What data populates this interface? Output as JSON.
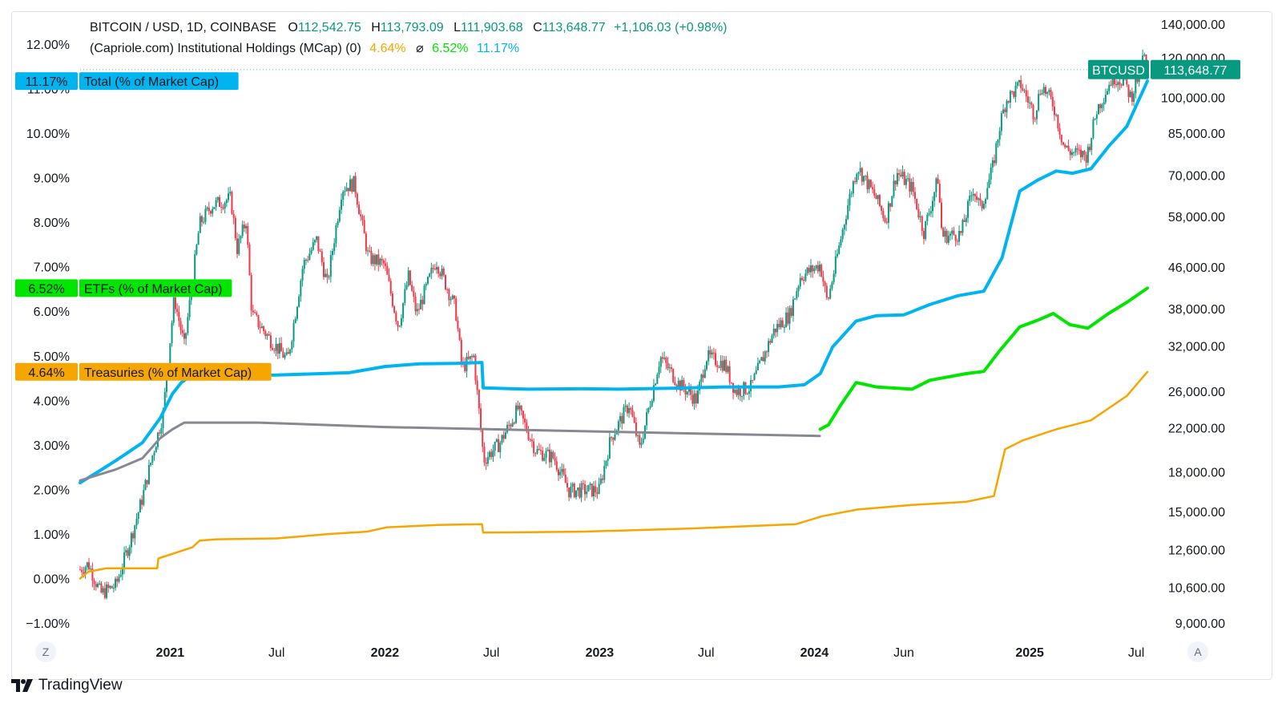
{
  "header": {
    "symbol": "BITCOIN / USD, 1D, COINBASE",
    "open_label": "O",
    "open": "112,542.75",
    "high_label": "H",
    "high": "113,793.09",
    "low_label": "L",
    "low": "111,903.68",
    "close_label": "C",
    "close": "113,648.77",
    "change": "+1,106.03 (+0.98%)",
    "indicator": "(Capriole.com) Institutional Holdings (MCap) (0)",
    "indicator_treasuries": "4.64%",
    "indicator_sep": "⌀",
    "indicator_etfs": "6.52%",
    "indicator_total": "11.17%"
  },
  "colors": {
    "up": "#089981",
    "down": "#f23645",
    "total": "#00b4f0",
    "etfs": "#00e600",
    "treasuries": "#f7a600",
    "gray": "#868993"
  },
  "price_tag": {
    "label": "BTCUSD",
    "value": "113,648.77"
  },
  "footer": {
    "left_button": "Z",
    "right_button": "A",
    "brand": "TradingView"
  },
  "chart_data": {
    "type": "line",
    "title": "BITCOIN / USD, 1D, COINBASE",
    "left_axis_ticks": [
      "12.00%",
      "11.00%",
      "10.00%",
      "9.00%",
      "8.00%",
      "7.00%",
      "6.00%",
      "5.00%",
      "4.00%",
      "3.00%",
      "2.00%",
      "1.00%",
      "0.00%",
      "−1.00%"
    ],
    "left_axis_values": [
      12,
      11,
      10,
      9,
      8,
      7,
      6,
      5,
      4,
      3,
      2,
      1,
      0,
      -1
    ],
    "ylim_left": [
      -1,
      12
    ],
    "right_axis_ticks": [
      "140,000.00",
      "120,000.00",
      "100,000.00",
      "85,000.00",
      "70,000.00",
      "58,000.00",
      "46,000.00",
      "38,000.00",
      "32,000.00",
      "26,000.00",
      "22,000.00",
      "18,000.00",
      "15,000.00",
      "12,600.00",
      "10,600.00",
      "9,000.00"
    ],
    "right_axis_values": [
      140000,
      120000,
      100000,
      85000,
      70000,
      58000,
      46000,
      38000,
      32000,
      26000,
      22000,
      18000,
      15000,
      12600,
      10600,
      9000
    ],
    "right_axis_scale": "log",
    "x_ticks": [
      "2021",
      "Jul",
      "2022",
      "Jul",
      "2023",
      "Jul",
      "2024",
      "Jun",
      "2025",
      "Jul"
    ],
    "x_tick_dates": [
      "2021-01-01",
      "2021-07-01",
      "2022-01-01",
      "2022-07-01",
      "2023-01-01",
      "2023-07-01",
      "2024-01-01",
      "2024-06-01",
      "2025-01-01",
      "2025-07-01"
    ],
    "xlim": [
      "2020-08-01",
      "2025-07-20"
    ],
    "grid": false,
    "series": [
      {
        "name": "Total (% of Market Cap)",
        "label_value": "11.17%",
        "color": "#00b4f0",
        "axis": "left",
        "points": [
          [
            "2020-08-01",
            2.15
          ],
          [
            "2020-09-01",
            2.4
          ],
          [
            "2020-10-01",
            2.65
          ],
          [
            "2020-11-15",
            3.05
          ],
          [
            "2020-12-15",
            3.6
          ],
          [
            "2021-01-05",
            4.15
          ],
          [
            "2021-01-20",
            4.4
          ],
          [
            "2021-02-10",
            4.6
          ],
          [
            "2021-04-01",
            4.56
          ],
          [
            "2021-07-01",
            4.57
          ],
          [
            "2021-11-01",
            4.62
          ],
          [
            "2022-01-01",
            4.76
          ],
          [
            "2022-03-01",
            4.82
          ],
          [
            "2022-05-01",
            4.83
          ],
          [
            "2022-06-15",
            4.85
          ],
          [
            "2022-06-17",
            4.28
          ],
          [
            "2022-09-01",
            4.25
          ],
          [
            "2022-12-01",
            4.26
          ],
          [
            "2023-02-01",
            4.25
          ],
          [
            "2023-05-01",
            4.27
          ],
          [
            "2023-08-01",
            4.3
          ],
          [
            "2023-11-01",
            4.3
          ],
          [
            "2023-12-15",
            4.35
          ],
          [
            "2024-01-11",
            4.6
          ],
          [
            "2024-02-01",
            5.2
          ],
          [
            "2024-03-12",
            5.78
          ],
          [
            "2024-04-15",
            5.9
          ],
          [
            "2024-06-01",
            5.92
          ],
          [
            "2024-07-15",
            6.15
          ],
          [
            "2024-09-01",
            6.35
          ],
          [
            "2024-10-15",
            6.45
          ],
          [
            "2024-11-15",
            7.2
          ],
          [
            "2024-12-15",
            8.7
          ],
          [
            "2025-01-15",
            8.95
          ],
          [
            "2025-02-15",
            9.15
          ],
          [
            "2025-03-15",
            9.1
          ],
          [
            "2025-04-15",
            9.2
          ],
          [
            "2025-05-15",
            9.7
          ],
          [
            "2025-06-15",
            10.15
          ],
          [
            "2025-07-20",
            11.17
          ]
        ]
      },
      {
        "name": "ETFs (% of Market Cap)",
        "label_value": "6.52%",
        "color": "#00e600",
        "axis": "left",
        "points": [
          [
            "2024-01-11",
            3.35
          ],
          [
            "2024-01-25",
            3.45
          ],
          [
            "2024-02-15",
            3.9
          ],
          [
            "2024-03-12",
            4.4
          ],
          [
            "2024-04-15",
            4.3
          ],
          [
            "2024-06-15",
            4.25
          ],
          [
            "2024-07-15",
            4.45
          ],
          [
            "2024-09-15",
            4.6
          ],
          [
            "2024-10-15",
            4.65
          ],
          [
            "2024-11-10",
            5.1
          ],
          [
            "2024-12-15",
            5.65
          ],
          [
            "2025-01-15",
            5.8
          ],
          [
            "2025-02-10",
            5.95
          ],
          [
            "2025-03-10",
            5.7
          ],
          [
            "2025-04-10",
            5.62
          ],
          [
            "2025-05-15",
            5.95
          ],
          [
            "2025-06-15",
            6.2
          ],
          [
            "2025-07-20",
            6.52
          ]
        ]
      },
      {
        "name": "Treasuries (% of Market Cap)",
        "label_value": "4.64%",
        "color": "#f7a600",
        "axis": "left",
        "points": [
          [
            "2020-08-01",
            0.0
          ],
          [
            "2020-08-15",
            0.15
          ],
          [
            "2020-09-15",
            0.23
          ],
          [
            "2020-12-10",
            0.23
          ],
          [
            "2020-12-12",
            0.45
          ],
          [
            "2021-02-08",
            0.7
          ],
          [
            "2021-02-20",
            0.85
          ],
          [
            "2021-03-20",
            0.88
          ],
          [
            "2021-07-01",
            0.9
          ],
          [
            "2021-10-01",
            1.0
          ],
          [
            "2021-12-01",
            1.05
          ],
          [
            "2022-01-05",
            1.15
          ],
          [
            "2022-04-01",
            1.2
          ],
          [
            "2022-06-15",
            1.22
          ],
          [
            "2022-06-17",
            1.03
          ],
          [
            "2022-12-01",
            1.05
          ],
          [
            "2023-06-01",
            1.12
          ],
          [
            "2023-12-01",
            1.22
          ],
          [
            "2024-01-15",
            1.4
          ],
          [
            "2024-03-15",
            1.55
          ],
          [
            "2024-06-15",
            1.65
          ],
          [
            "2024-09-15",
            1.72
          ],
          [
            "2024-11-01",
            1.85
          ],
          [
            "2024-11-20",
            2.9
          ],
          [
            "2024-12-20",
            3.1
          ],
          [
            "2025-02-15",
            3.35
          ],
          [
            "2025-04-15",
            3.55
          ],
          [
            "2025-06-15",
            4.1
          ],
          [
            "2025-07-20",
            4.64
          ]
        ]
      },
      {
        "name": "",
        "color": "#868993",
        "axis": "left",
        "points": [
          [
            "2020-08-01",
            2.2
          ],
          [
            "2020-10-01",
            2.45
          ],
          [
            "2020-11-15",
            2.7
          ],
          [
            "2020-12-15",
            3.15
          ],
          [
            "2021-01-05",
            3.35
          ],
          [
            "2021-01-25",
            3.5
          ],
          [
            "2021-06-01",
            3.5
          ],
          [
            "2022-01-01",
            3.4
          ],
          [
            "2022-07-01",
            3.35
          ],
          [
            "2023-01-01",
            3.3
          ],
          [
            "2023-07-01",
            3.25
          ],
          [
            "2024-01-10",
            3.2
          ]
        ]
      },
      {
        "name": "BTCUSD",
        "color": "#089981",
        "axis": "right",
        "kind": "candles",
        "points": [
          [
            "2020-08-01",
            11500
          ],
          [
            "2020-08-15",
            11800
          ],
          [
            "2020-09-05",
            10300
          ],
          [
            "2020-10-01",
            10700
          ],
          [
            "2020-10-25",
            13100
          ],
          [
            "2020-11-15",
            16000
          ],
          [
            "2020-12-01",
            19200
          ],
          [
            "2020-12-20",
            23500
          ],
          [
            "2021-01-08",
            40000
          ],
          [
            "2021-01-25",
            32000
          ],
          [
            "2021-02-20",
            56000
          ],
          [
            "2021-03-13",
            61000
          ],
          [
            "2021-04-14",
            63000
          ],
          [
            "2021-04-25",
            50000
          ],
          [
            "2021-05-10",
            57000
          ],
          [
            "2021-05-20",
            37000
          ],
          [
            "2021-06-20",
            33000
          ],
          [
            "2021-07-20",
            30000
          ],
          [
            "2021-08-15",
            46500
          ],
          [
            "2021-09-07",
            52000
          ],
          [
            "2021-09-25",
            42500
          ],
          [
            "2021-10-20",
            66000
          ],
          [
            "2021-11-10",
            67500
          ],
          [
            "2021-12-04",
            48000
          ],
          [
            "2021-12-31",
            46500
          ],
          [
            "2022-01-24",
            35000
          ],
          [
            "2022-02-10",
            44000
          ],
          [
            "2022-02-24",
            37000
          ],
          [
            "2022-03-29",
            47500
          ],
          [
            "2022-05-01",
            38000
          ],
          [
            "2022-05-12",
            29000
          ],
          [
            "2022-06-01",
            30500
          ],
          [
            "2022-06-18",
            19000
          ],
          [
            "2022-07-15",
            20500
          ],
          [
            "2022-08-15",
            24000
          ],
          [
            "2022-09-15",
            19800
          ],
          [
            "2022-10-15",
            19200
          ],
          [
            "2022-11-10",
            16500
          ],
          [
            "2022-12-31",
            16550
          ],
          [
            "2023-01-20",
            21000
          ],
          [
            "2023-02-20",
            24500
          ],
          [
            "2023-03-10",
            20000
          ],
          [
            "2023-04-14",
            30500
          ],
          [
            "2023-05-15",
            27000
          ],
          [
            "2023-06-15",
            25000
          ],
          [
            "2023-07-01",
            30500
          ],
          [
            "2023-08-01",
            29500
          ],
          [
            "2023-08-20",
            26000
          ],
          [
            "2023-09-15",
            26500
          ],
          [
            "2023-10-25",
            34500
          ],
          [
            "2023-11-20",
            37000
          ],
          [
            "2023-12-08",
            44000
          ],
          [
            "2024-01-11",
            46500
          ],
          [
            "2024-01-23",
            39000
          ],
          [
            "2024-02-28",
            62000
          ],
          [
            "2024-03-14",
            73000
          ],
          [
            "2024-04-15",
            63000
          ],
          [
            "2024-05-01",
            57000
          ],
          [
            "2024-05-20",
            71000
          ],
          [
            "2024-06-15",
            66000
          ],
          [
            "2024-07-05",
            54000
          ],
          [
            "2024-07-29",
            69000
          ],
          [
            "2024-08-05",
            53000
          ],
          [
            "2024-09-06",
            53500
          ],
          [
            "2024-09-27",
            66000
          ],
          [
            "2024-10-10",
            60000
          ],
          [
            "2024-10-30",
            72500
          ],
          [
            "2024-11-12",
            89000
          ],
          [
            "2024-11-22",
            99000
          ],
          [
            "2024-12-17",
            106000
          ],
          [
            "2025-01-09",
            92500
          ],
          [
            "2025-01-21",
            106000
          ],
          [
            "2025-02-10",
            97000
          ],
          [
            "2025-02-28",
            80000
          ],
          [
            "2025-03-10",
            78000
          ],
          [
            "2025-04-08",
            76500
          ],
          [
            "2025-04-25",
            94500
          ],
          [
            "2025-05-22",
            110000
          ],
          [
            "2025-06-10",
            108000
          ],
          [
            "2025-06-22",
            100000
          ],
          [
            "2025-07-03",
            109000
          ],
          [
            "2025-07-14",
            121000
          ],
          [
            "2025-07-20",
            113648.77
          ]
        ]
      }
    ]
  }
}
